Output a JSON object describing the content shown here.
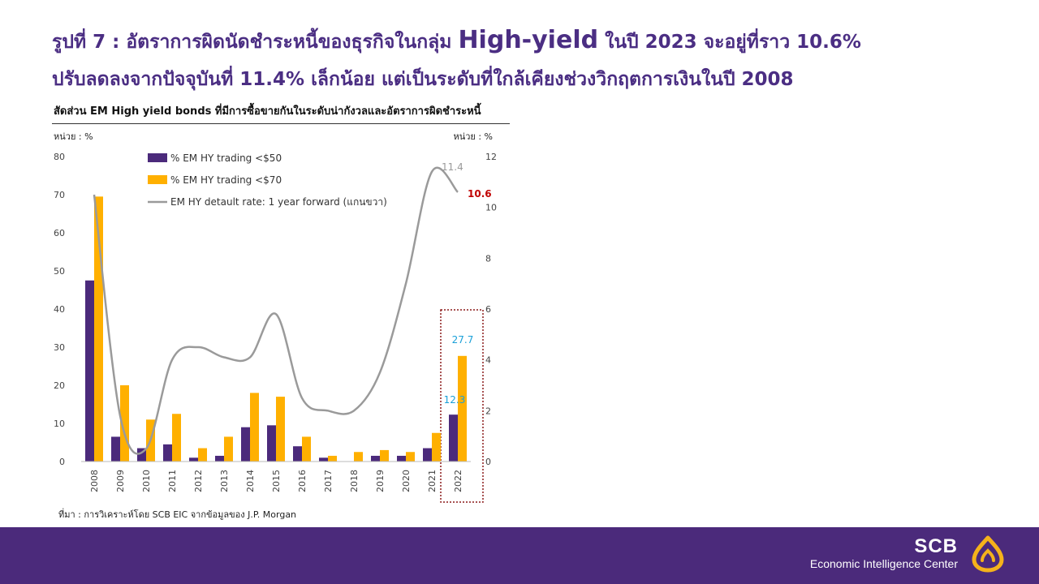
{
  "headline": {
    "line1_prefix": "รูปที่ 7 : อัตราการผิดนัดชำระหนี้ของธุรกิจในกลุ่ม ",
    "line1_emphasis": "High-yield",
    "line1_suffix": " ในปี 2023 จะอยู่ที่ราว 10.6%",
    "line2": "ปรับลดลงจากปัจจุบันที่ 11.4% เล็กน้อย แต่เป็นระดับที่ใกล้เคียงช่วงวิกฤตการเงินในปี 2008"
  },
  "footer": {
    "source": "ที่มา : การวิเคราะห์โดย SCB EIC จากข้อมูลของ J.P. Morgan",
    "brand_name": "SCB",
    "brand_unit": "Economic Intelligence Center"
  },
  "colors": {
    "series_50": "#4b2a7b",
    "series_70": "#ffb000",
    "line": "#9a9a9a",
    "label_2022": "#1aa0d8",
    "label_2023": "#c00000",
    "highlight_box": "#8b1a1a",
    "footer": "#4b2a7b",
    "logo": "#f5b21b"
  },
  "chart_data": {
    "type": "bar",
    "title": "สัดส่วน EM High yield bonds ที่มีการซื้อขายกันในระดับน่ากังวลและอัตราการผิดชำระหนี้",
    "y_left_unit": "หน่วย : %",
    "y_right_unit": "หน่วย : %",
    "y_left_ticks": [
      "0",
      "10",
      "20",
      "30",
      "40",
      "50",
      "60",
      "70",
      "80"
    ],
    "y_right_ticks": [
      "0",
      "2",
      "4",
      "6",
      "8",
      "10",
      "12"
    ],
    "ylim_left": [
      0,
      80
    ],
    "ylim_right": [
      0,
      12
    ],
    "categories": [
      "2008",
      "2009",
      "2010",
      "2011",
      "2012",
      "2013",
      "2014",
      "2015",
      "2016",
      "2017",
      "2018",
      "2019",
      "2020",
      "2021",
      "2022"
    ],
    "series": [
      {
        "name": "% EM HY trading <$50",
        "axis": "left",
        "type": "bar",
        "values": [
          47.5,
          6.5,
          3.5,
          4.5,
          1.0,
          1.5,
          9.0,
          9.5,
          4.0,
          1.0,
          0.0,
          1.5,
          1.5,
          3.5,
          12.3
        ]
      },
      {
        "name": "% EM HY trading <$70",
        "axis": "left",
        "type": "bar",
        "values": [
          69.5,
          20.0,
          11.0,
          12.5,
          3.5,
          6.5,
          18.0,
          17.0,
          6.5,
          1.5,
          2.5,
          3.0,
          2.5,
          7.5,
          27.7
        ]
      },
      {
        "name": "EM HY detault rate: 1 year forward (แกนขวา)",
        "axis": "right",
        "type": "line",
        "x": [
          "2008",
          "2009",
          "2010",
          "2011",
          "2012",
          "2013",
          "2014",
          "2015",
          "2016",
          "2017",
          "2018",
          "2019",
          "2020",
          "2021",
          "2022"
        ],
        "values": [
          10.5,
          1.8,
          0.5,
          4.0,
          4.5,
          4.1,
          4.1,
          5.8,
          2.5,
          2.0,
          2.0,
          3.5,
          7.0,
          11.4,
          10.6
        ]
      }
    ],
    "data_labels": [
      {
        "text": "27.7",
        "series": 1,
        "index": 14,
        "color_key": "label_2022"
      },
      {
        "text": "12.3",
        "series": 0,
        "index": 14,
        "color_key": "label_2022"
      },
      {
        "text": "11.4",
        "series": 2,
        "index": 13,
        "color_key": "line"
      },
      {
        "text": "10.6",
        "series": 2,
        "index": 14,
        "color_key": "label_2023"
      }
    ],
    "legend_position": "top-left",
    "highlight_category": "2022",
    "grid": false
  }
}
